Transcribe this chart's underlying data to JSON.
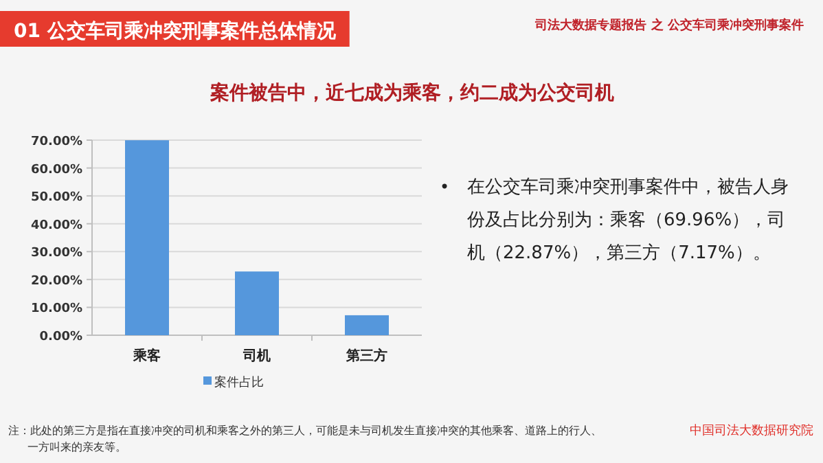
{
  "chart_data": {
    "type": "bar",
    "title": "01  公交车司乘冲突刑事案件总体情况",
    "subtitle": "案件被告中，近七成为乘客，约二成为公交司机",
    "categories": [
      "乘客",
      "司机",
      "第三方"
    ],
    "series": [
      {
        "name": "案件占比",
        "color": "#5597dc",
        "values": [
          69.96,
          22.87,
          7.17
        ]
      }
    ],
    "ylim": [
      0,
      70
    ],
    "yticks": [
      {
        "value": 0,
        "label": "0.00%"
      },
      {
        "value": 10,
        "label": "10.00%"
      },
      {
        "value": 20,
        "label": "20.00%"
      },
      {
        "value": 30,
        "label": "30.00%"
      },
      {
        "value": 40,
        "label": "40.00%"
      },
      {
        "value": 50,
        "label": "50.00%"
      },
      {
        "value": 60,
        "label": "60.00%"
      },
      {
        "value": 70,
        "label": "70.00%"
      }
    ],
    "grid": "y",
    "legend": "bottom",
    "annotations": [
      "司法大数据专题报告 之 公交车司乘冲突刑事案件",
      "•在公交车司乘冲突刑事案件中，被告人身份及占比分别为：乘客（69.96%），司机（22.87%），第三方（7.17%）。",
      "注：此处的第三方是指在直接冲突的司机和乘客之外的第三人，可能是未与司机发生直接冲突的其他乘客、道路上的行人、",
      "一方叫来的亲友等。",
      "中国司法大数据研究院"
    ]
  }
}
